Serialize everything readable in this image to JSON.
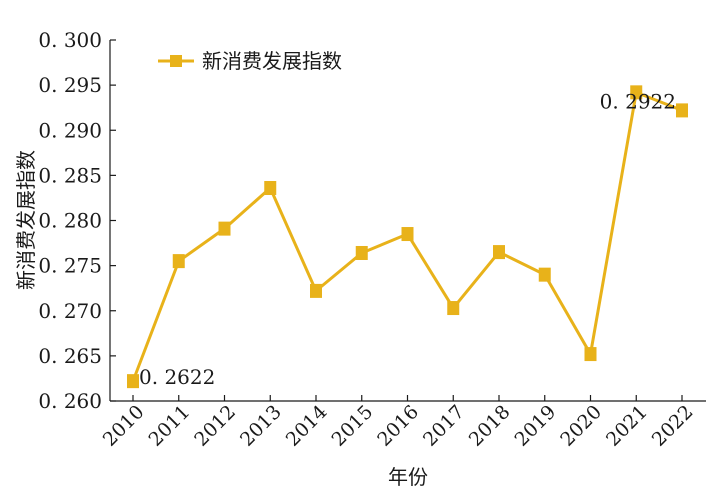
{
  "chart_data": {
    "type": "line",
    "title": "",
    "xlabel": "年份",
    "ylabel": "新消费发展指数",
    "categories": [
      "2010",
      "2011",
      "2012",
      "2013",
      "2014",
      "2015",
      "2016",
      "2017",
      "2018",
      "2019",
      "2020",
      "2021",
      "2022"
    ],
    "series": [
      {
        "name": "新消费发展指数",
        "values": [
          0.2622,
          0.2755,
          0.2791,
          0.2836,
          0.2722,
          0.2764,
          0.2785,
          0.2703,
          0.2765,
          0.274,
          0.2652,
          0.2942,
          0.2922
        ],
        "color": "#E8B21A",
        "marker": "square"
      }
    ],
    "ylim": [
      0.26,
      0.3
    ],
    "yticks": [
      "0. 260",
      "0. 265",
      "0. 270",
      "0. 275",
      "0. 280",
      "0. 285",
      "0. 290",
      "0. 295",
      "0. 300"
    ],
    "annotations": [
      {
        "category": "2010",
        "text": "0. 2622",
        "position": "right"
      },
      {
        "category": "2022",
        "text": "0. 2922",
        "position": "left"
      }
    ],
    "grid": false,
    "legend_position": "top-left"
  }
}
